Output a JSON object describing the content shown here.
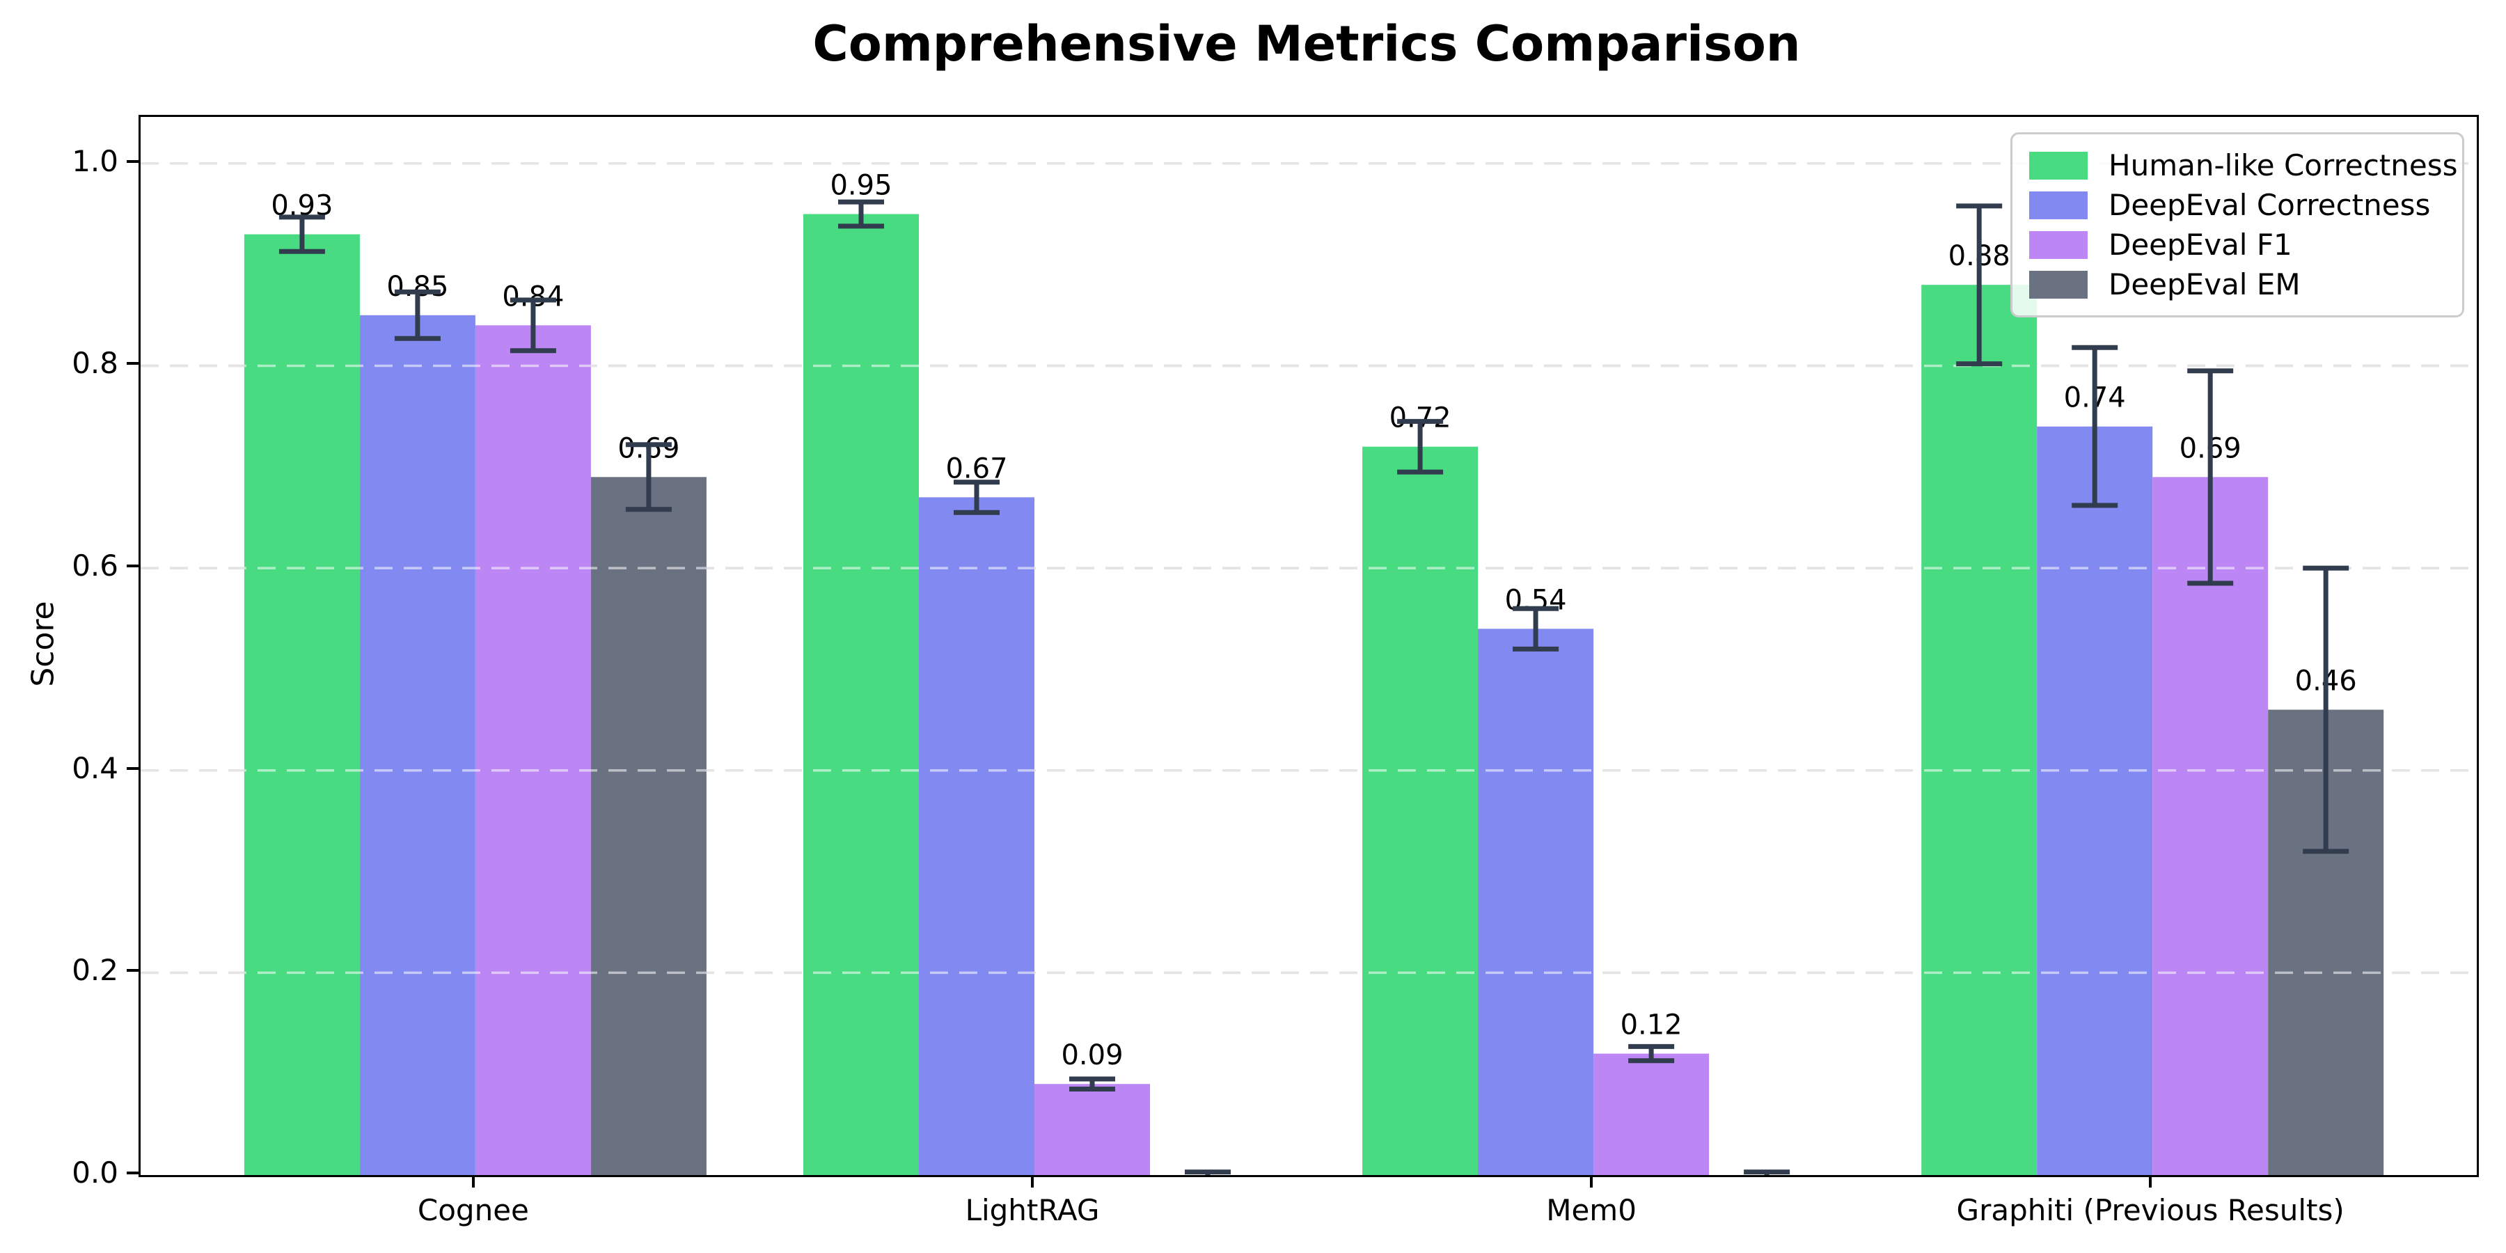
{
  "chart_data": {
    "type": "bar",
    "title": "Comprehensive Metrics Comparison",
    "xlabel": "",
    "ylabel": "Score",
    "ylim": [
      0.0,
      1.046
    ],
    "grid": "horizontal dashed",
    "legend_position": "upper right",
    "y_ticks": [
      0.0,
      0.2,
      0.4,
      0.6,
      0.8,
      1.0
    ],
    "y_tick_labels": [
      "0.0",
      "0.2",
      "0.4",
      "0.6",
      "0.8",
      "1.0"
    ],
    "categories": [
      "Cognee",
      "LightRAG",
      "Mem0",
      "Graphiti (Previous Results)"
    ],
    "series": [
      {
        "name": "Human-like Correctness",
        "color": "#48db81",
        "values": [
          0.93,
          0.95,
          0.72,
          0.88
        ],
        "errors": [
          0.017,
          0.012,
          0.025,
          0.078
        ],
        "bar_labels": [
          "0.93",
          "0.95",
          "0.72",
          "0.88"
        ]
      },
      {
        "name": "DeepEval Correctness",
        "color": "#8289f0",
        "values": [
          0.85,
          0.67,
          0.54,
          0.74
        ],
        "errors": [
          0.023,
          0.015,
          0.02,
          0.078
        ],
        "bar_labels": [
          "0.85",
          "0.67",
          "0.54",
          "0.74"
        ]
      },
      {
        "name": "DeepEval F1",
        "color": "#bd86f5",
        "values": [
          0.84,
          0.09,
          0.12,
          0.69
        ],
        "errors": [
          0.025,
          0.005,
          0.007,
          0.105
        ],
        "bar_labels": [
          "0.84",
          "0.09",
          "0.12",
          "0.69"
        ]
      },
      {
        "name": "DeepEval EM",
        "color": "#6a7180",
        "values": [
          0.69,
          0.0,
          0.0,
          0.46
        ],
        "errors": [
          0.032,
          0.003,
          0.003,
          0.14
        ],
        "bar_labels": [
          "0.69",
          "",
          "",
          "0.46"
        ]
      }
    ],
    "colors": {
      "error_bar": "#313c4e",
      "grid_base": "#c4c4c4",
      "grid_overlay": "rgba(255,255,255,0.55)",
      "spine": "#000000",
      "background": "#ffffff",
      "legend_border": "#cccccc"
    }
  }
}
